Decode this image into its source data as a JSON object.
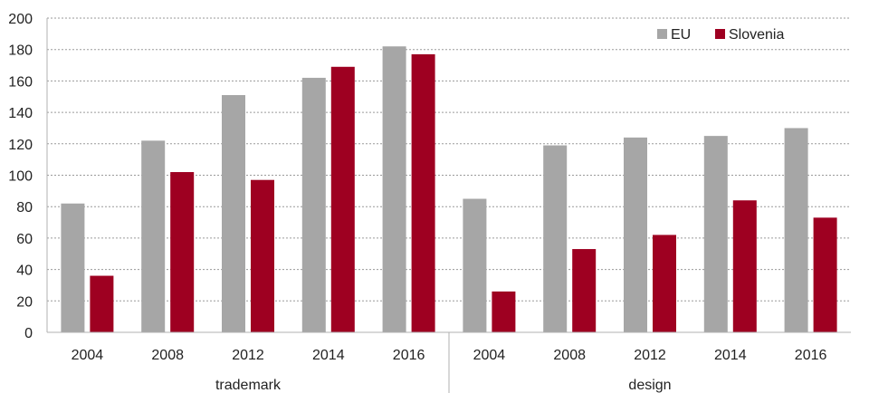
{
  "chart_data": {
    "type": "bar",
    "title": "",
    "xlabel": "",
    "ylabel": "",
    "ylim": [
      0,
      200
    ],
    "yticks": [
      0,
      20,
      40,
      60,
      80,
      100,
      120,
      140,
      160,
      180,
      200
    ],
    "grid": true,
    "legend_position": "top-right",
    "groups": [
      {
        "label": "trademark",
        "categories": [
          "2004",
          "2008",
          "2012",
          "2014",
          "2016"
        ]
      },
      {
        "label": "design",
        "categories": [
          "2004",
          "2008",
          "2012",
          "2014",
          "2016"
        ]
      }
    ],
    "categories": [
      "2004",
      "2008",
      "2012",
      "2014",
      "2016",
      "2004",
      "2008",
      "2012",
      "2014",
      "2016"
    ],
    "series": [
      {
        "name": "EU",
        "color": "#a6a6a6",
        "values": [
          82,
          122,
          151,
          162,
          182,
          85,
          119,
          124,
          125,
          130
        ]
      },
      {
        "name": "Slovenia",
        "color": "#9e0021",
        "values": [
          36,
          102,
          97,
          169,
          177,
          26,
          53,
          62,
          84,
          73
        ]
      }
    ]
  }
}
